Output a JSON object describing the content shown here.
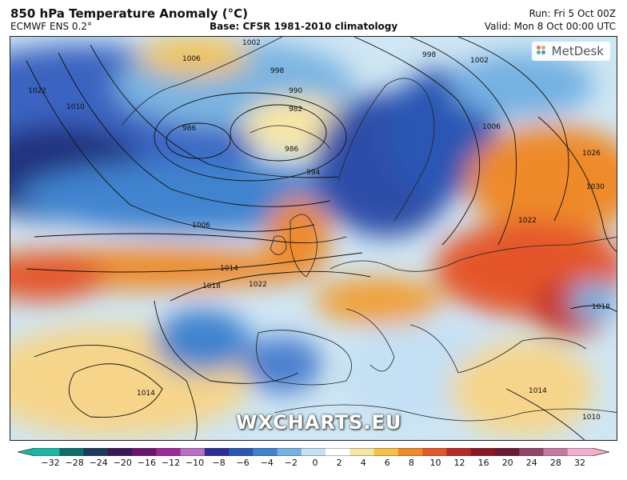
{
  "header": {
    "title": "850 hPa Temperature Anomaly (°C)",
    "model": "ECMWF ENS 0.2°",
    "base": "Base: CFSR 1981-2010 climatology",
    "run": "Run: Fri 5 Oct 00Z",
    "valid": "Valid: Mon 8 Oct 00:00 UTC"
  },
  "map": {
    "logo_text": "MetDesk",
    "logo_icon": "metdesk-dots-icon",
    "watermark": "WXCHARTS.EU",
    "isobar_labels": [
      "1002",
      "1006",
      "998",
      "998",
      "1002",
      "1022",
      "1010",
      "986",
      "990",
      "982",
      "986",
      "994",
      "1006",
      "1026",
      "1030",
      "1022",
      "1006",
      "1014",
      "1018",
      "1022",
      "1018",
      "1014",
      "1014",
      "1010"
    ]
  },
  "colorbar": {
    "ticks": [
      "−32",
      "−28",
      "−24",
      "−20",
      "−16",
      "−12",
      "−10",
      "−8",
      "−6",
      "−4",
      "−2",
      "0",
      "2",
      "4",
      "6",
      "8",
      "10",
      "12",
      "16",
      "20",
      "24",
      "28",
      "32"
    ],
    "colors": [
      "#1db6a4",
      "#0f6f6a",
      "#1b3a5c",
      "#3a1855",
      "#6a1670",
      "#9c2a9b",
      "#b96fc3",
      "#2f2e97",
      "#2a56b4",
      "#3f83cf",
      "#75b1e2",
      "#c4e0f4",
      "#ffffff",
      "#f7e6a6",
      "#f6c14a",
      "#ee8a2a",
      "#e4572b",
      "#b62a2a",
      "#8a1a20",
      "#6d1833",
      "#93456a",
      "#c47aa0",
      "#f2aecb"
    ]
  }
}
